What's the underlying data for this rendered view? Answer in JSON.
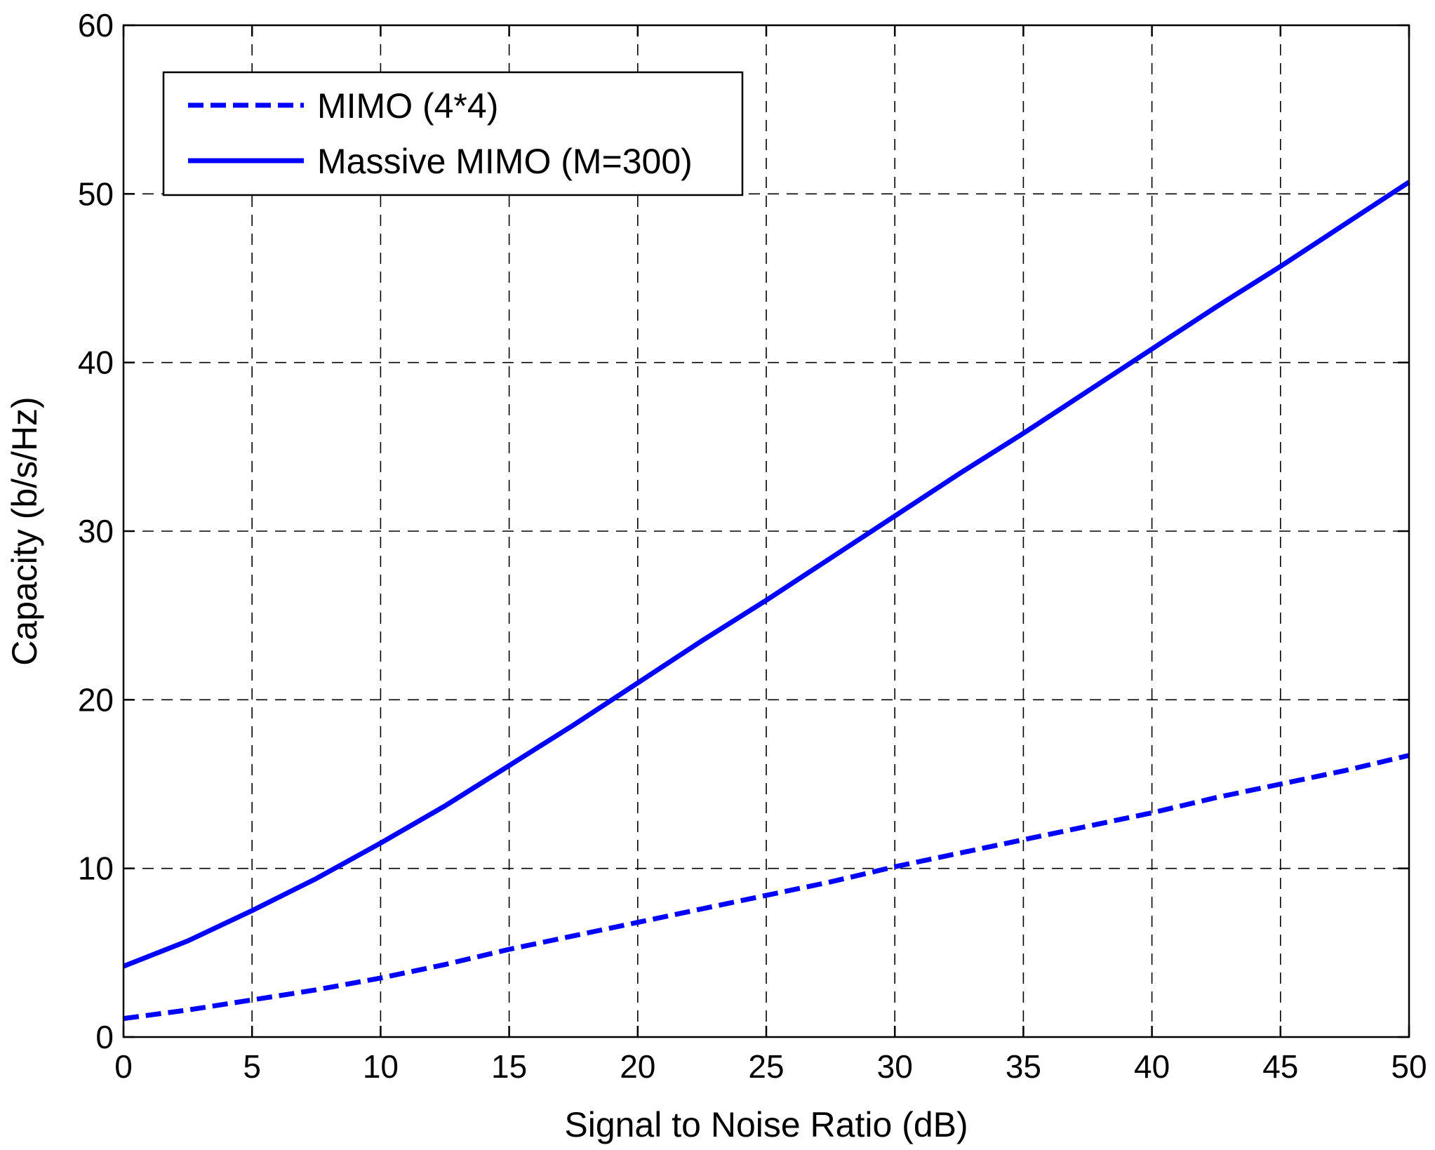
{
  "chart_data": {
    "type": "line",
    "title": "",
    "xlabel": "Signal to Noise Ratio (dB)",
    "ylabel": "Capacity (b/s/Hz)",
    "xlim": [
      0,
      50
    ],
    "ylim": [
      0,
      60
    ],
    "xticks": [
      0,
      5,
      10,
      15,
      20,
      25,
      30,
      35,
      40,
      45,
      50
    ],
    "yticks": [
      0,
      10,
      20,
      30,
      40,
      50,
      60
    ],
    "xtick_labels": [
      "0",
      "5",
      "10",
      "15",
      "20",
      "25",
      "30",
      "35",
      "40",
      "45",
      "50"
    ],
    "ytick_labels": [
      "0",
      "10",
      "20",
      "30",
      "40",
      "50",
      "60"
    ],
    "grid": true,
    "legend_position": "top-left",
    "x": [
      0,
      2.5,
      5,
      7.5,
      10,
      12.5,
      15,
      17.5,
      20,
      22.5,
      25,
      27.5,
      30,
      32.5,
      35,
      37.5,
      40,
      42.5,
      45,
      47.5,
      50
    ],
    "series": [
      {
        "name": "MIMO (4*4)",
        "style": "dashed",
        "color": "#0000ff",
        "values": [
          1.1,
          1.6,
          2.2,
          2.8,
          3.5,
          4.3,
          5.2,
          6.0,
          6.8,
          7.6,
          8.4,
          9.2,
          10.1,
          10.9,
          11.7,
          12.5,
          13.3,
          14.2,
          15.0,
          15.8,
          16.7
        ]
      },
      {
        "name": "Massive MIMO (M=300)",
        "style": "solid",
        "color": "#0000ff",
        "values": [
          4.2,
          5.7,
          7.5,
          9.4,
          11.5,
          13.7,
          16.1,
          18.5,
          21.0,
          23.5,
          25.9,
          28.4,
          30.9,
          33.4,
          35.8,
          38.3,
          40.8,
          43.3,
          45.7,
          48.2,
          50.7
        ]
      }
    ]
  }
}
